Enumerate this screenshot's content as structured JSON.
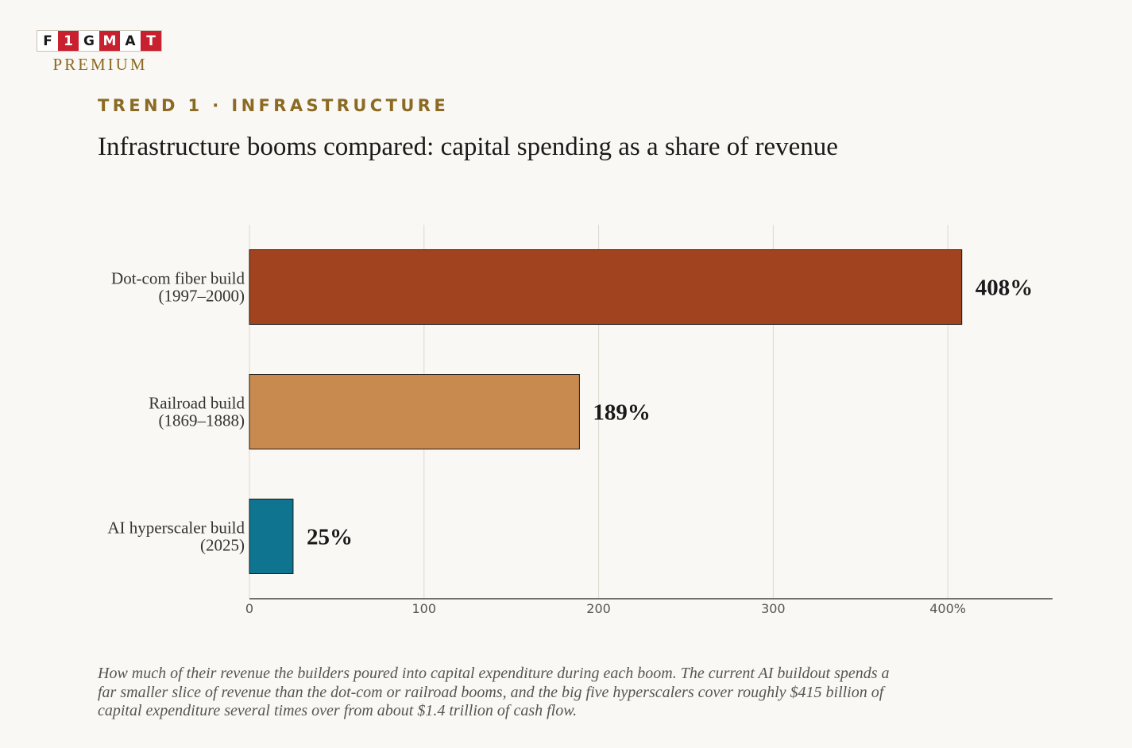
{
  "brand": {
    "logo_letters": [
      "F",
      "1",
      "G",
      "M",
      "A",
      "T"
    ],
    "logo_letter_styles": [
      "light",
      "red",
      "light",
      "red",
      "light",
      "red"
    ],
    "tagline": "PREMIUM"
  },
  "eyebrow": "TREND 1 · INFRASTRUCTURE",
  "caption": "How much of their revenue the builders poured into capital expenditure during each boom. The current AI buildout spends a far smaller slice of revenue than the dot-com or railroad booms, and the big five hyperscalers cover roughly $415 billion of capital expenditure several times over from about $1.4 trillion of cash flow.",
  "chart_data": {
    "type": "bar",
    "orientation": "horizontal",
    "title": "Infrastructure booms compared: capital spending as a share of revenue",
    "categories": [
      [
        "Dot-com fiber build",
        "(1997–2000)"
      ],
      [
        "Railroad build",
        "(1869–1888)"
      ],
      [
        "AI hyperscaler build",
        "(2025)"
      ]
    ],
    "values": [
      408,
      189,
      25
    ],
    "data_labels": [
      "408%",
      "189%",
      "25%"
    ],
    "bar_colors": [
      "#a0431e",
      "#c98a50",
      "#0f7490"
    ],
    "xlim": [
      0,
      460
    ],
    "x_ticks": [
      0,
      100,
      200,
      300,
      400
    ],
    "x_tick_labels": [
      "0",
      "100",
      "200",
      "300",
      "400%"
    ],
    "grid": "vertical",
    "legend": "none"
  }
}
